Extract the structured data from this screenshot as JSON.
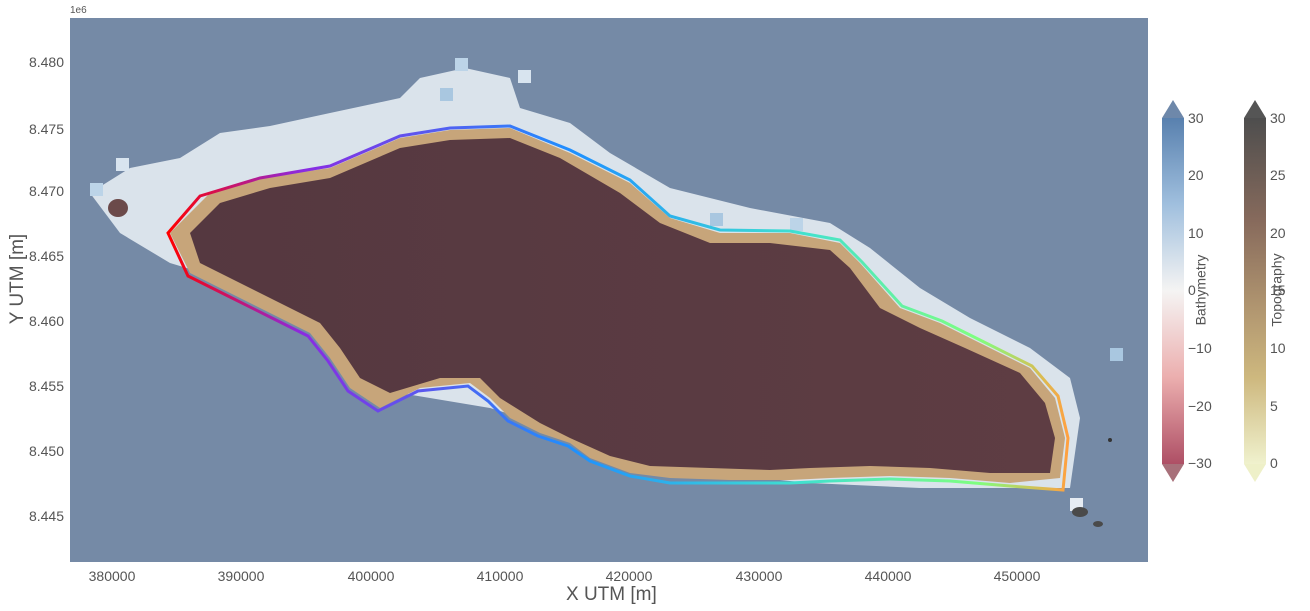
{
  "axes": {
    "xlabel": "X UTM [m]",
    "ylabel": "Y UTM [m]",
    "y_offset_label": "1e6",
    "xticks": [
      "380000",
      "390000",
      "400000",
      "410000",
      "420000",
      "430000",
      "440000",
      "450000"
    ],
    "yticks": [
      "8.480",
      "8.475",
      "8.470",
      "8.465",
      "8.460",
      "8.455",
      "8.450",
      "8.445"
    ],
    "xlim": [
      376500,
      460000
    ],
    "ylim": [
      8441500,
      8483500
    ]
  },
  "colorbars": {
    "bathymetry": {
      "label": "Bathymetry",
      "ticks": [
        "30",
        "20",
        "10",
        "0",
        "−10",
        "−20",
        "−30"
      ]
    },
    "topography": {
      "label": "Topography",
      "ticks": [
        "30",
        "25",
        "20",
        "15",
        "10",
        "5",
        "0"
      ]
    }
  },
  "colors": {
    "ocean": "#758aa6",
    "land": "#5a3a40",
    "shallow_water": "#e9edf3"
  }
}
